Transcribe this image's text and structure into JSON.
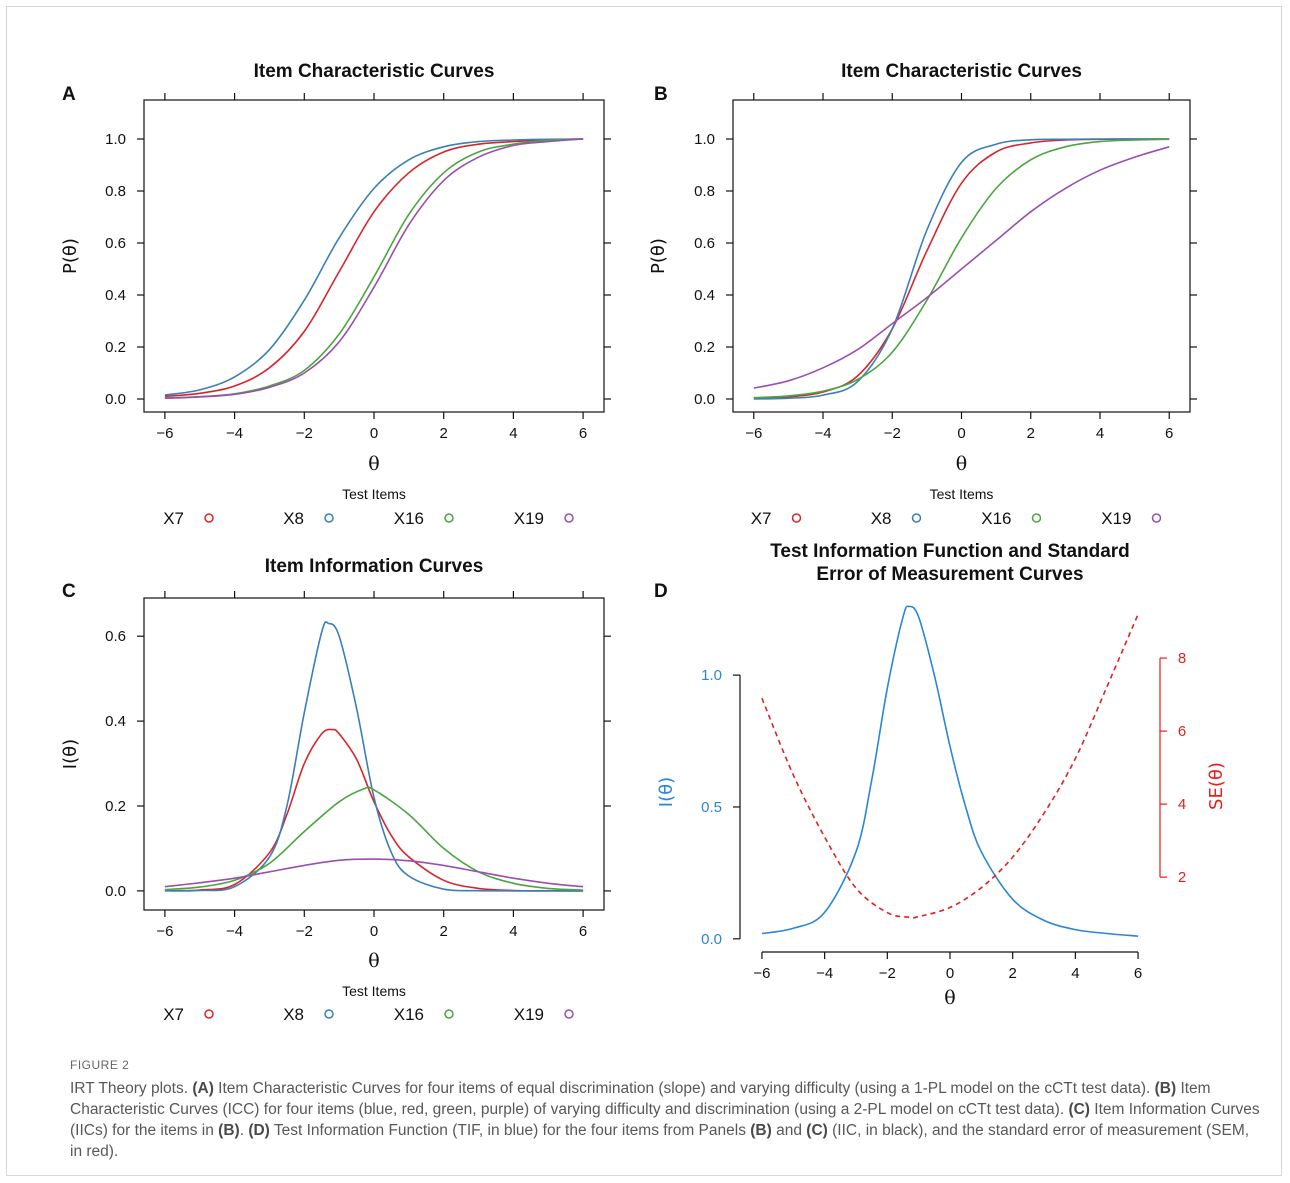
{
  "figure": {
    "label": "FIGURE 2",
    "caption": [
      {
        "t": "IRT Theory plots. ",
        "b": false
      },
      {
        "t": "(A)",
        "b": true
      },
      {
        "t": " Item Characteristic Curves for four items of equal discrimination (slope) and varying difficulty (using a 1-PL model on the cCTt test data). ",
        "b": false
      },
      {
        "t": "(B)",
        "b": true
      },
      {
        "t": " Item Characteristic Curves (ICC) for four items (blue, red, green, purple) of varying difficulty and discrimination (using a 2-PL model on cCTt test data). ",
        "b": false
      },
      {
        "t": "(C)",
        "b": true
      },
      {
        "t": " Item Information Curves (IICs) for the items in ",
        "b": false
      },
      {
        "t": "(B)",
        "b": true
      },
      {
        "t": ". ",
        "b": false
      },
      {
        "t": "(D)",
        "b": true
      },
      {
        "t": " Test Information Function (TIF, in blue) for the four items from Panels ",
        "b": false
      },
      {
        "t": "(B)",
        "b": true
      },
      {
        "t": " and ",
        "b": false
      },
      {
        "t": "(C)",
        "b": true
      },
      {
        "t": " (IIC, in black), and the standard error of measurement (SEM, in red).",
        "b": false
      }
    ]
  },
  "colors": {
    "X7": "#d7262b",
    "X8": "#3a7fb7",
    "X16": "#4aa63f",
    "X19": "#9a4fb0",
    "tif": "#2a86d8",
    "sem": "#e3201c"
  },
  "chart_data": [
    {
      "panel": "A",
      "type": "line",
      "title": "Item Characteristic Curves",
      "xlabel": "θ",
      "ylabel": "P(θ)",
      "xlim": [
        -6.6,
        6.6
      ],
      "ylim": [
        -0.05,
        1.15
      ],
      "xticks": [
        -6,
        -4,
        -2,
        0,
        2,
        4,
        6
      ],
      "yticks": [
        0.0,
        0.2,
        0.4,
        0.6,
        0.8,
        1.0
      ],
      "legend_title": "Test Items",
      "legend_position": "bottom",
      "series": [
        {
          "name": "X7",
          "x": [
            -6,
            -5,
            -4,
            -3,
            -2,
            -1,
            0,
            1,
            2,
            3,
            4,
            5,
            6
          ],
          "values": [
            0.01,
            0.022,
            0.05,
            0.12,
            0.26,
            0.49,
            0.72,
            0.87,
            0.95,
            0.98,
            0.99,
            0.997,
            1.0
          ]
        },
        {
          "name": "X8",
          "x": [
            -6,
            -5,
            -4,
            -3,
            -2,
            -1,
            0,
            1,
            2,
            3,
            4,
            5,
            6
          ],
          "values": [
            0.015,
            0.035,
            0.085,
            0.19,
            0.38,
            0.62,
            0.81,
            0.92,
            0.97,
            0.99,
            0.996,
            0.999,
            1.0
          ]
        },
        {
          "name": "X16",
          "x": [
            -6,
            -5,
            -4,
            -3,
            -2,
            -1,
            0,
            1,
            2,
            3,
            4,
            5,
            6
          ],
          "values": [
            0.004,
            0.009,
            0.02,
            0.05,
            0.11,
            0.25,
            0.47,
            0.71,
            0.87,
            0.95,
            0.98,
            0.995,
            1.0
          ]
        },
        {
          "name": "X19",
          "x": [
            -6,
            -5,
            -4,
            -3,
            -2,
            -1,
            0,
            1,
            2,
            3,
            4,
            5,
            6
          ],
          "values": [
            0.003,
            0.008,
            0.018,
            0.045,
            0.1,
            0.22,
            0.43,
            0.67,
            0.84,
            0.93,
            0.975,
            0.99,
            1.0
          ]
        }
      ]
    },
    {
      "panel": "B",
      "type": "line",
      "title": "Item Characteristic Curves",
      "xlabel": "θ",
      "ylabel": "P(θ)",
      "xlim": [
        -6.6,
        6.6
      ],
      "ylim": [
        -0.05,
        1.15
      ],
      "xticks": [
        -6,
        -4,
        -2,
        0,
        2,
        4,
        6
      ],
      "yticks": [
        0.0,
        0.2,
        0.4,
        0.6,
        0.8,
        1.0
      ],
      "legend_title": "Test Items",
      "legend_position": "bottom",
      "series": [
        {
          "name": "X7",
          "x": [
            -6,
            -5,
            -4,
            -3,
            -2,
            -1,
            0,
            1,
            2,
            3,
            4,
            5,
            6
          ],
          "values": [
            0.002,
            0.008,
            0.027,
            0.089,
            0.27,
            0.57,
            0.83,
            0.95,
            0.985,
            0.996,
            0.999,
            1.0,
            1.0
          ]
        },
        {
          "name": "X8",
          "x": [
            -6,
            -5,
            -4,
            -3,
            -2,
            -1,
            0,
            1,
            2,
            3,
            4,
            5,
            6
          ],
          "values": [
            0.0005,
            0.003,
            0.015,
            0.067,
            0.27,
            0.65,
            0.91,
            0.98,
            0.997,
            0.999,
            1.0,
            1.0,
            1.0
          ]
        },
        {
          "name": "X16",
          "x": [
            -6,
            -5,
            -4,
            -3,
            -2,
            -1,
            0,
            1,
            2,
            3,
            4,
            5,
            6
          ],
          "values": [
            0.005,
            0.012,
            0.03,
            0.075,
            0.18,
            0.38,
            0.62,
            0.81,
            0.92,
            0.97,
            0.99,
            0.996,
            0.999
          ]
        },
        {
          "name": "X19",
          "x": [
            -6,
            -5,
            -4,
            -3,
            -2,
            -1,
            0,
            1,
            2,
            3,
            4,
            5,
            6
          ],
          "values": [
            0.042,
            0.07,
            0.12,
            0.19,
            0.29,
            0.39,
            0.5,
            0.61,
            0.72,
            0.81,
            0.88,
            0.93,
            0.97
          ]
        }
      ]
    },
    {
      "panel": "C",
      "type": "line",
      "title": "Item Information Curves",
      "xlabel": "θ",
      "ylabel": "I(θ)",
      "xlim": [
        -6.6,
        6.6
      ],
      "ylim": [
        -0.045,
        0.69
      ],
      "xticks": [
        -6,
        -4,
        -2,
        0,
        2,
        4,
        6
      ],
      "yticks": [
        0.0,
        0.2,
        0.4,
        0.6
      ],
      "legend_title": "Test Items",
      "legend_position": "bottom",
      "series": [
        {
          "name": "X7",
          "x": [
            -6,
            -5,
            -4,
            -3,
            -2.5,
            -2,
            -1.5,
            -1.2,
            -1,
            -0.5,
            0,
            0.5,
            1,
            2,
            3,
            4,
            5,
            6
          ],
          "values": [
            0.0005,
            0.002,
            0.015,
            0.09,
            0.18,
            0.3,
            0.37,
            0.38,
            0.37,
            0.31,
            0.21,
            0.13,
            0.08,
            0.025,
            0.006,
            0.001,
            0.0003,
            0.0001
          ]
        },
        {
          "name": "X8",
          "x": [
            -6,
            -5,
            -4,
            -3,
            -2.5,
            -2,
            -1.5,
            -1.3,
            -1,
            -0.5,
            0,
            0.5,
            1,
            2,
            3,
            4,
            5,
            6
          ],
          "values": [
            0.0001,
            0.001,
            0.01,
            0.08,
            0.2,
            0.42,
            0.61,
            0.63,
            0.6,
            0.43,
            0.22,
            0.09,
            0.035,
            0.004,
            0.0005,
            0.0001,
            0.0,
            0.0
          ]
        },
        {
          "name": "X16",
          "x": [
            -6,
            -5,
            -4,
            -3,
            -2,
            -1,
            -0.3,
            0,
            1,
            2,
            3,
            4,
            5,
            6
          ],
          "values": [
            0.003,
            0.009,
            0.025,
            0.065,
            0.14,
            0.21,
            0.24,
            0.238,
            0.18,
            0.1,
            0.045,
            0.018,
            0.006,
            0.002
          ]
        },
        {
          "name": "X19",
          "x": [
            -6,
            -5,
            -4,
            -3,
            -2,
            -1,
            0,
            1,
            2,
            3,
            4,
            5,
            6
          ],
          "values": [
            0.01,
            0.019,
            0.03,
            0.045,
            0.06,
            0.072,
            0.075,
            0.071,
            0.06,
            0.045,
            0.03,
            0.018,
            0.01
          ]
        }
      ]
    },
    {
      "panel": "D",
      "type": "line",
      "title": "Test Information Function and Standard Error of Measurement Curves",
      "title_lines": [
        "Test Information Function and Standard",
        "Error of Measurement Curves"
      ],
      "xlabel": "θ",
      "ylabel": "I(θ)",
      "ylabel_right": "SE(θ)",
      "xlim": [
        -6.7,
        6.7
      ],
      "ylim": [
        -0.05,
        1.3
      ],
      "ylim_right": [
        -0.05,
        9.7
      ],
      "xticks": [
        -6,
        -4,
        -2,
        0,
        2,
        4,
        6
      ],
      "yticks": [
        0.0,
        0.5,
        1.0
      ],
      "yticks_right": [
        2,
        4,
        6,
        8
      ],
      "series": [
        {
          "name": "I(θ)",
          "axis": "left",
          "style": "solid",
          "x": [
            -6,
            -5,
            -4,
            -3,
            -2.5,
            -2,
            -1.5,
            -1.3,
            -1,
            -0.5,
            0,
            0.5,
            1,
            2,
            3,
            4,
            5,
            6
          ],
          "values": [
            0.02,
            0.04,
            0.1,
            0.33,
            0.6,
            0.95,
            1.22,
            1.26,
            1.22,
            1.0,
            0.73,
            0.5,
            0.33,
            0.15,
            0.07,
            0.035,
            0.02,
            0.01
          ]
        },
        {
          "name": "SE(θ)",
          "axis": "right",
          "style": "dashed",
          "x": [
            -6,
            -5,
            -4,
            -3,
            -2,
            -1.3,
            -1,
            0,
            1,
            2,
            3,
            4,
            5,
            6
          ],
          "values": [
            6.9,
            4.8,
            3.1,
            1.7,
            1.03,
            0.9,
            0.92,
            1.17,
            1.71,
            2.55,
            3.75,
            5.25,
            7.2,
            9.2
          ]
        }
      ]
    }
  ]
}
